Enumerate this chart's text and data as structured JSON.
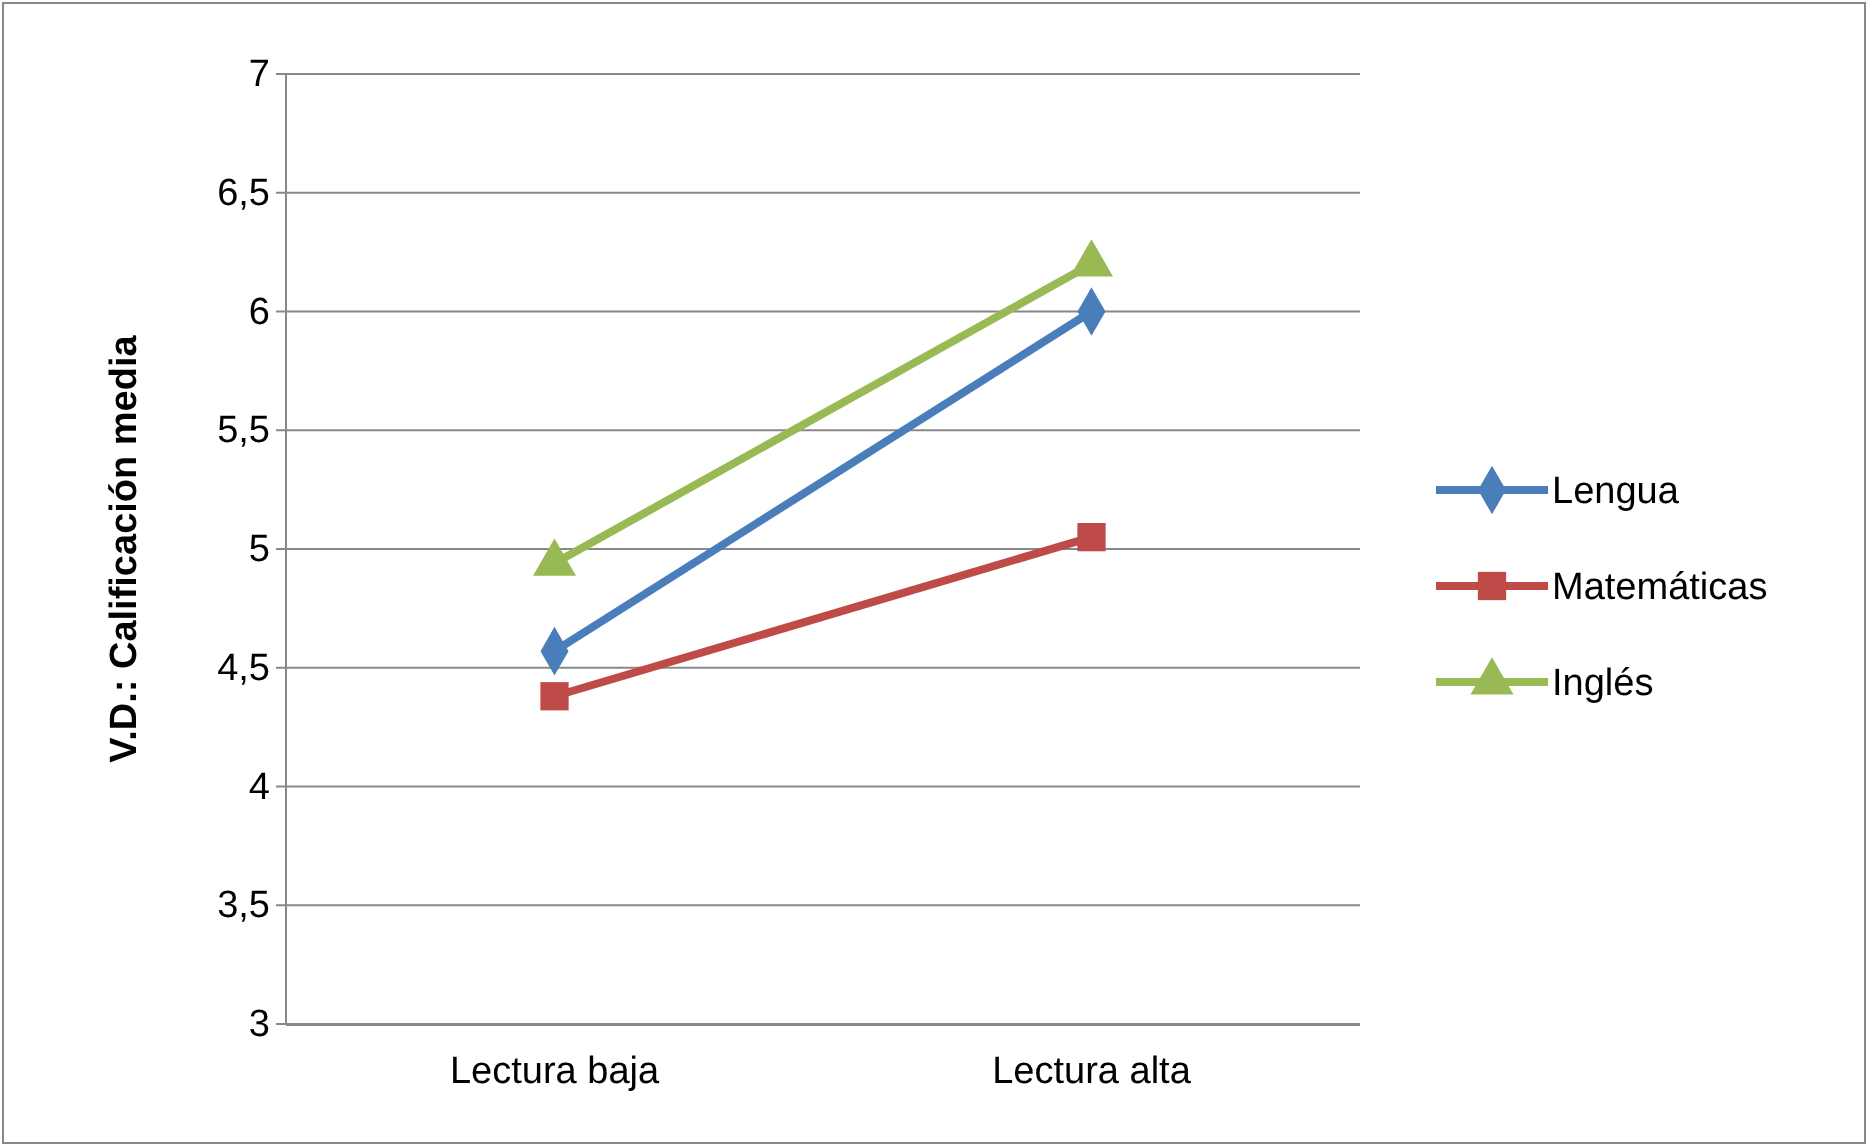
{
  "chart_data": {
    "type": "line",
    "ylabel": "V.D.: Calificación media",
    "categories": [
      "Lectura baja",
      "Lectura alta"
    ],
    "series": [
      {
        "name": "Lengua",
        "color": "#4a7ebb",
        "marker": "diamond",
        "values": [
          4.57,
          6.0
        ]
      },
      {
        "name": "Matemáticas",
        "color": "#be4b48",
        "marker": "square",
        "values": [
          4.38,
          5.05
        ]
      },
      {
        "name": "Inglés",
        "color": "#98b954",
        "marker": "triangle",
        "values": [
          4.94,
          6.2
        ]
      }
    ],
    "ylim": [
      3,
      7
    ],
    "yticks": [
      3,
      {
        "value": 3.5,
        "label": "3,5"
      },
      4,
      {
        "value": 4.5,
        "label": "4,5"
      },
      5,
      {
        "value": 5.5,
        "label": "5,5"
      },
      6,
      {
        "value": 6.5,
        "label": "6,5"
      },
      7
    ],
    "grid": "y",
    "legend": "right"
  }
}
